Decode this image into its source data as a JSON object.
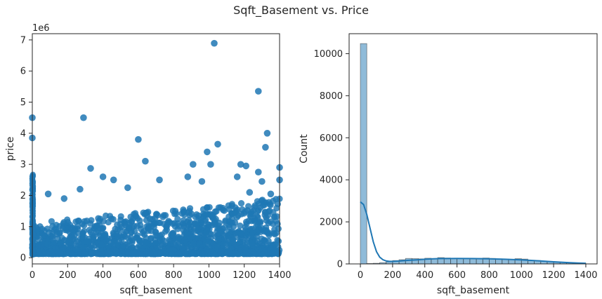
{
  "figure": {
    "suptitle": "Sqft_Basement vs. Price",
    "colors": {
      "primary": "#1f77b4",
      "axis": "#262626",
      "hist_fill": "#aec7e8"
    }
  },
  "chart_data": [
    {
      "type": "scatter",
      "title": "",
      "xlabel": "sqft_basement",
      "ylabel": "price",
      "y_offset_label": "1e6",
      "xlim": [
        0,
        1400
      ],
      "ylim": [
        -0.2,
        7.2
      ],
      "x_ticks": [
        0,
        200,
        400,
        600,
        800,
        1000,
        1200,
        1400
      ],
      "y_ticks": [
        0,
        1,
        2,
        3,
        4,
        5,
        6,
        7
      ],
      "x_tick_labels": [
        "0",
        "200",
        "400",
        "600",
        "800",
        "1000",
        "1200",
        "1400"
      ],
      "y_tick_labels": [
        "0",
        "1",
        "2",
        "3",
        "4",
        "5",
        "6",
        "7"
      ],
      "grid": false,
      "point_color": "#1f77b4",
      "outliers": [
        {
          "x": 1030,
          "y": 6.89
        },
        {
          "x": 1280,
          "y": 5.35
        },
        {
          "x": 290,
          "y": 4.5
        },
        {
          "x": 0,
          "y": 4.5
        },
        {
          "x": 1330,
          "y": 4.0
        },
        {
          "x": 600,
          "y": 3.8
        },
        {
          "x": 0,
          "y": 3.85
        },
        {
          "x": 1050,
          "y": 3.65
        },
        {
          "x": 1320,
          "y": 3.55
        },
        {
          "x": 990,
          "y": 3.4
        },
        {
          "x": 640,
          "y": 3.1
        },
        {
          "x": 910,
          "y": 3.0
        },
        {
          "x": 1210,
          "y": 2.95
        },
        {
          "x": 1400,
          "y": 2.9
        },
        {
          "x": 330,
          "y": 2.87
        },
        {
          "x": 1180,
          "y": 3.0
        },
        {
          "x": 1010,
          "y": 3.0
        },
        {
          "x": 720,
          "y": 2.5
        },
        {
          "x": 1280,
          "y": 2.75
        },
        {
          "x": 400,
          "y": 2.6
        },
        {
          "x": 1400,
          "y": 2.5
        },
        {
          "x": 880,
          "y": 2.6
        },
        {
          "x": 1160,
          "y": 2.6
        },
        {
          "x": 1300,
          "y": 2.45
        },
        {
          "x": 90,
          "y": 2.05
        },
        {
          "x": 270,
          "y": 2.2
        },
        {
          "x": 180,
          "y": 1.9
        },
        {
          "x": 460,
          "y": 2.5
        },
        {
          "x": 540,
          "y": 2.25
        },
        {
          "x": 960,
          "y": 2.45
        },
        {
          "x": 1350,
          "y": 2.05
        },
        {
          "x": 1230,
          "y": 2.1
        }
      ]
    },
    {
      "type": "bar",
      "title": "",
      "xlabel": "sqft_basement",
      "ylabel": "Count",
      "xlim": [
        -70,
        1470
      ],
      "ylim": [
        0,
        10950
      ],
      "x_ticks": [
        0,
        200,
        400,
        600,
        800,
        1000,
        1200,
        1400
      ],
      "y_ticks": [
        0,
        2000,
        4000,
        6000,
        8000,
        10000
      ],
      "x_tick_labels": [
        "0",
        "200",
        "400",
        "600",
        "800",
        "1000",
        "1200",
        "1400"
      ],
      "y_tick_labels": [
        "0",
        "2000",
        "4000",
        "6000",
        "8000",
        "10000"
      ],
      "grid": false,
      "bin_edges": [
        0,
        40,
        80,
        120,
        160,
        200,
        240,
        280,
        320,
        360,
        400,
        440,
        480,
        520,
        560,
        600,
        640,
        680,
        720,
        760,
        800,
        840,
        880,
        920,
        960,
        1000,
        1040,
        1080,
        1120,
        1160,
        1200,
        1240,
        1280,
        1320,
        1360,
        1400
      ],
      "counts": [
        10480,
        20,
        30,
        60,
        100,
        160,
        200,
        260,
        250,
        240,
        270,
        250,
        300,
        280,
        250,
        270,
        260,
        250,
        270,
        280,
        260,
        240,
        230,
        220,
        250,
        230,
        170,
        160,
        130,
        110,
        100,
        70,
        60,
        50,
        40
      ],
      "kde": {
        "x": [
          0,
          20,
          40,
          60,
          80,
          100,
          120,
          140,
          160,
          180,
          200,
          250,
          300,
          350,
          400,
          450,
          500,
          600,
          700,
          800,
          900,
          1000,
          1100,
          1150,
          1200,
          1250,
          1300,
          1350,
          1400
        ],
        "y": [
          2950,
          2820,
          2350,
          1700,
          1050,
          580,
          320,
          200,
          140,
          120,
          120,
          140,
          170,
          195,
          220,
          240,
          255,
          260,
          255,
          245,
          220,
          190,
          150,
          125,
          100,
          80,
          60,
          45,
          30
        ]
      }
    }
  ]
}
